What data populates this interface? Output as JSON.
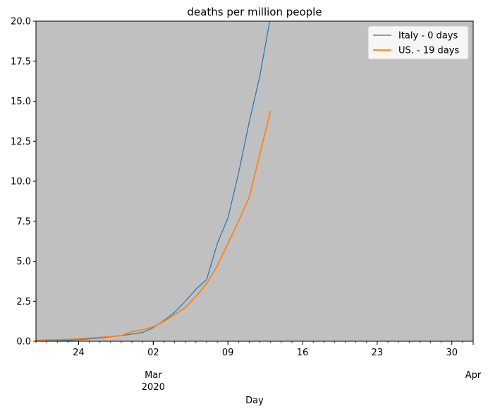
{
  "chart_data": {
    "type": "line",
    "title": "deaths per million people",
    "xlabel": "Day",
    "ylabel": "",
    "xlim": [
      "2020-02-20",
      "2020-04-01"
    ],
    "ylim": [
      0,
      20
    ],
    "y_ticks": [
      {
        "value": 0,
        "label": "0.0"
      },
      {
        "value": 2.5,
        "label": "2.5"
      },
      {
        "value": 5,
        "label": "5.0"
      },
      {
        "value": 7.5,
        "label": "7.5"
      },
      {
        "value": 10,
        "label": "10.0"
      },
      {
        "value": 12.5,
        "label": "12.5"
      },
      {
        "value": 15,
        "label": "15.0"
      },
      {
        "value": 17.5,
        "label": "17.5"
      },
      {
        "value": 20,
        "label": "20.0"
      }
    ],
    "x_ticks": [
      {
        "date": "2020-02-24",
        "label": "24"
      },
      {
        "date": "2020-03-02",
        "label": "02"
      },
      {
        "date": "2020-03-09",
        "label": "09"
      },
      {
        "date": "2020-03-16",
        "label": "16"
      },
      {
        "date": "2020-03-23",
        "label": "23"
      },
      {
        "date": "2020-03-30",
        "label": "30"
      }
    ],
    "x_month_labels": [
      {
        "date": "2020-03-02",
        "label": "Mar",
        "sublabel": "2020"
      },
      {
        "date": "2020-04-01",
        "label": "Apr",
        "sublabel": ""
      }
    ],
    "background": "#c0c0c0",
    "grid": false,
    "legend": "top-right",
    "series": [
      {
        "name": "Italy - 0 days",
        "color": "#1f77b4",
        "x": [
          "2020-02-20",
          "2020-02-21",
          "2020-02-22",
          "2020-02-23",
          "2020-02-24",
          "2020-02-25",
          "2020-02-26",
          "2020-02-27",
          "2020-02-28",
          "2020-02-29",
          "2020-03-01",
          "2020-03-02",
          "2020-03-03",
          "2020-03-04",
          "2020-03-05",
          "2020-03-06",
          "2020-03-07",
          "2020-03-08",
          "2020-03-09",
          "2020-03-10",
          "2020-03-11",
          "2020-03-12",
          "2020-03-13"
        ],
        "y": [
          0.0,
          0.02,
          0.03,
          0.05,
          0.1,
          0.15,
          0.2,
          0.28,
          0.35,
          0.45,
          0.55,
          0.85,
          1.3,
          1.8,
          2.5,
          3.25,
          3.85,
          6.1,
          7.7,
          10.5,
          13.7,
          16.6,
          20.3
        ]
      },
      {
        "name": "US. - 19 days",
        "color": "#ff7f0e",
        "x": [
          "2020-02-20",
          "2020-02-21",
          "2020-02-22",
          "2020-02-23",
          "2020-02-24",
          "2020-02-25",
          "2020-02-26",
          "2020-02-27",
          "2020-02-28",
          "2020-02-29",
          "2020-03-01",
          "2020-03-02",
          "2020-03-03",
          "2020-03-04",
          "2020-03-05",
          "2020-03-06",
          "2020-03-07",
          "2020-03-08",
          "2020-03-09",
          "2020-03-10",
          "2020-03-11",
          "2020-03-12",
          "2020-03-13"
        ],
        "y": [
          0.05,
          0.08,
          0.1,
          0.12,
          0.15,
          0.2,
          0.25,
          0.3,
          0.35,
          0.6,
          0.72,
          0.9,
          1.25,
          1.65,
          2.1,
          2.8,
          3.6,
          4.7,
          6.1,
          7.5,
          9.0,
          11.7,
          14.4
        ]
      }
    ]
  }
}
